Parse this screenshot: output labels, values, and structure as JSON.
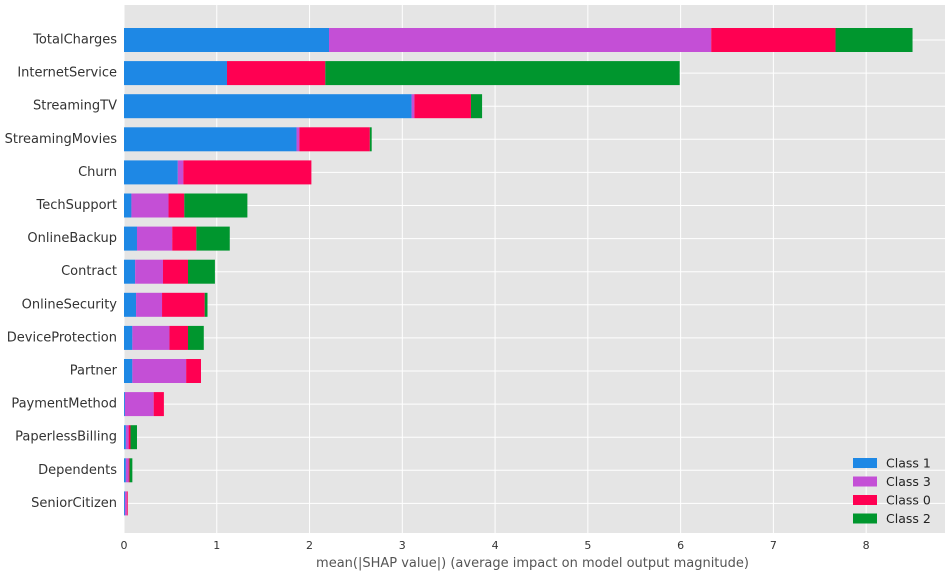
{
  "chart_data": {
    "type": "bar",
    "orientation": "horizontal",
    "stacked": true,
    "categories": [
      "TotalCharges",
      "InternetService",
      "StreamingTV",
      "StreamingMovies",
      "Churn",
      "TechSupport",
      "OnlineBackup",
      "Contract",
      "OnlineSecurity",
      "DeviceProtection",
      "Partner",
      "PaymentMethod",
      "PaperlessBilling",
      "Dependents",
      "SeniorCitizen"
    ],
    "series": [
      {
        "name": "Class 1",
        "color": "#1e88e5",
        "values": [
          2.21,
          1.11,
          3.1,
          1.86,
          0.58,
          0.08,
          0.14,
          0.12,
          0.13,
          0.09,
          0.09,
          0.01,
          0.02,
          0.02,
          0.01
        ]
      },
      {
        "name": "Class 3",
        "color": "#c44fd6",
        "values": [
          4.12,
          0.0,
          0.03,
          0.03,
          0.06,
          0.4,
          0.38,
          0.3,
          0.28,
          0.4,
          0.58,
          0.31,
          0.03,
          0.03,
          0.02
        ]
      },
      {
        "name": "Class 0",
        "color": "#ff0052",
        "values": [
          1.34,
          1.06,
          0.61,
          0.76,
          1.38,
          0.17,
          0.26,
          0.27,
          0.46,
          0.2,
          0.16,
          0.11,
          0.02,
          0.01,
          0.01
        ]
      },
      {
        "name": "Class 2",
        "color": "#00962e",
        "values": [
          0.83,
          3.82,
          0.12,
          0.02,
          0.0,
          0.68,
          0.36,
          0.29,
          0.03,
          0.17,
          0.0,
          0.0,
          0.07,
          0.03,
          0.0
        ]
      }
    ],
    "xlabel": "mean(|SHAP value|) (average impact on model output magnitude)",
    "xlim": [
      0,
      8.85
    ],
    "xticks": [
      0,
      1,
      2,
      3,
      4,
      5,
      6,
      7,
      8
    ],
    "grid": true,
    "legend_position": "bottom-right",
    "colors": {
      "background": "#e5e5e5",
      "grid": "#ffffff"
    }
  }
}
